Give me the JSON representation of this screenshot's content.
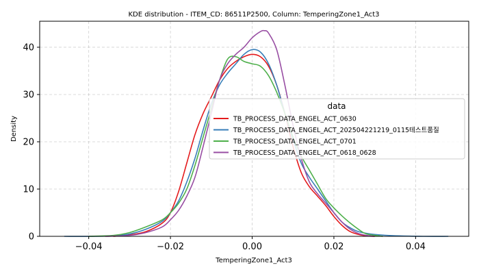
{
  "chart_data": {
    "type": "line",
    "title": "KDE distribution - ITEM_CD: 86511P2500, Column: TemperingZone1_Act3",
    "xlabel": "TemperingZone1_Act3",
    "ylabel": "Density",
    "xlim": [
      -0.052,
      0.053
    ],
    "ylim": [
      0,
      45.5
    ],
    "xticks": [
      -0.04,
      -0.02,
      0.0,
      0.02,
      0.04
    ],
    "xtick_labels": [
      "−0.04",
      "−0.02",
      "0.00",
      "0.02",
      "0.04"
    ],
    "yticks": [
      0,
      10,
      20,
      30,
      40
    ],
    "ytick_labels": [
      "0",
      "10",
      "20",
      "30",
      "40"
    ],
    "grid": true,
    "legend_title": "data",
    "legend_position": "center-right",
    "series": [
      {
        "name": "TB_PROCESS_DATA_ENGEL_ACT_0630",
        "color": "#e41a1c",
        "x": [
          -0.034,
          -0.03,
          -0.026,
          -0.022,
          -0.02,
          -0.018,
          -0.016,
          -0.014,
          -0.012,
          -0.01,
          -0.008,
          -0.006,
          -0.004,
          -0.002,
          0.0,
          0.002,
          0.004,
          0.006,
          0.008,
          0.01,
          0.012,
          0.014,
          0.016,
          0.018,
          0.02,
          0.022,
          0.024,
          0.026,
          0.028,
          0.03
        ],
        "y": [
          0.0,
          0.3,
          1.0,
          2.8,
          5.0,
          9.5,
          15.5,
          21.5,
          26.0,
          29.5,
          33.0,
          35.5,
          37.0,
          38.0,
          38.5,
          38.0,
          36.0,
          32.0,
          26.0,
          19.0,
          13.5,
          10.5,
          8.5,
          6.5,
          4.2,
          2.3,
          1.0,
          0.4,
          0.1,
          0.0
        ]
      },
      {
        "name": "TB_PROCESS_DATA_ENGEL_ACT_202504221219_0115테스트품질",
        "color": "#377eb8",
        "x": [
          -0.046,
          -0.04,
          -0.034,
          -0.03,
          -0.026,
          -0.022,
          -0.02,
          -0.018,
          -0.016,
          -0.014,
          -0.012,
          -0.01,
          -0.008,
          -0.006,
          -0.004,
          -0.002,
          0.0,
          0.002,
          0.004,
          0.006,
          0.008,
          0.01,
          0.012,
          0.014,
          0.016,
          0.018,
          0.02,
          0.022,
          0.024,
          0.026,
          0.03,
          0.036,
          0.042,
          0.048
        ],
        "y": [
          0.0,
          0.0,
          0.1,
          0.5,
          1.5,
          3.2,
          5.0,
          7.5,
          11.5,
          16.5,
          22.5,
          28.0,
          32.0,
          34.5,
          36.5,
          38.5,
          39.5,
          39.0,
          36.5,
          32.0,
          26.0,
          20.5,
          15.5,
          12.5,
          10.0,
          7.5,
          5.0,
          3.0,
          1.8,
          1.0,
          0.4,
          0.1,
          0.0,
          0.0
        ]
      },
      {
        "name": "TB_PROCESS_DATA_ENGEL_ACT_0701",
        "color": "#4daf4a",
        "x": [
          -0.04,
          -0.034,
          -0.03,
          -0.026,
          -0.022,
          -0.02,
          -0.018,
          -0.016,
          -0.014,
          -0.012,
          -0.01,
          -0.008,
          -0.006,
          -0.004,
          -0.002,
          0.0,
          0.002,
          0.004,
          0.006,
          0.008,
          0.01,
          0.012,
          0.014,
          0.016,
          0.018,
          0.02,
          0.022,
          0.024,
          0.026,
          0.028,
          0.032
        ],
        "y": [
          0.0,
          0.2,
          0.8,
          2.0,
          3.5,
          5.0,
          7.0,
          10.0,
          15.0,
          21.0,
          27.0,
          33.0,
          37.5,
          38.0,
          37.0,
          36.5,
          36.0,
          34.0,
          30.5,
          26.0,
          21.0,
          17.0,
          14.0,
          11.0,
          8.0,
          6.0,
          4.3,
          2.8,
          1.5,
          0.5,
          0.0
        ]
      },
      {
        "name": "TB_PROCESS_DATA_ENGEL_ACT_0618_0628",
        "color": "#984ea3",
        "x": [
          -0.036,
          -0.03,
          -0.026,
          -0.022,
          -0.02,
          -0.018,
          -0.016,
          -0.014,
          -0.012,
          -0.01,
          -0.008,
          -0.006,
          -0.004,
          -0.002,
          0.0,
          0.002,
          0.003,
          0.004,
          0.006,
          0.008,
          0.01,
          0.012,
          0.014,
          0.016,
          0.018,
          0.02,
          0.022,
          0.024,
          0.026,
          0.028,
          0.03
        ],
        "y": [
          0.0,
          0.2,
          0.8,
          2.0,
          3.5,
          5.5,
          8.5,
          12.5,
          19.0,
          26.0,
          33.0,
          36.5,
          38.5,
          40.0,
          42.0,
          43.3,
          43.5,
          43.0,
          39.5,
          32.0,
          23.5,
          16.5,
          11.5,
          9.0,
          7.0,
          5.0,
          3.0,
          1.5,
          0.6,
          0.2,
          0.0
        ]
      }
    ]
  }
}
